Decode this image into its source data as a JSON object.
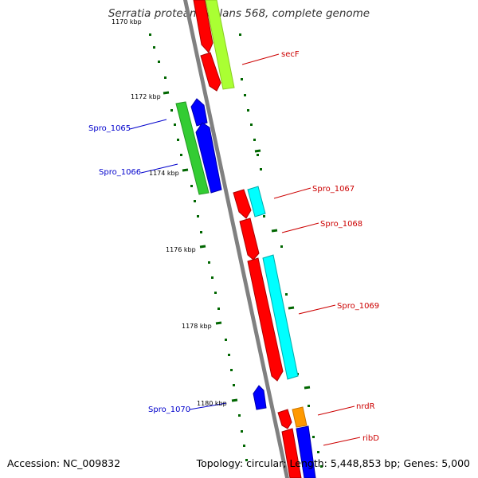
{
  "title": "Serratia proteamaculans 568, complete genome",
  "accession": {
    "label": "Accession:",
    "value": "NC_009832"
  },
  "summary": {
    "topology_label": "Topology:",
    "topology": "circular",
    "length_label": "Length:",
    "length": "5,448,853 bp",
    "genes_label": "Genes:",
    "genes": "5,000"
  },
  "ticks": [
    "1170 kbp",
    "1172 kbp",
    "1174 kbp",
    "1176 kbp",
    "1178 kbp",
    "1180 kbp"
  ],
  "gene_labels": {
    "secF": "secF",
    "spro_1065": "Spro_1065",
    "spro_1066": "Spro_1066",
    "spro_1067": "Spro_1067",
    "spro_1068": "Spro_1068",
    "spro_1069": "Spro_1069",
    "spro_1070": "Spro_1070",
    "nrdR": "nrdR",
    "ribD": "ribD"
  },
  "colors": {
    "forward_cds": "#ff0000",
    "reverse_cds": "#0000ff",
    "forward_blast": "#aaff33",
    "reverse_blast": "#33cc33",
    "cyan_feature": "#00ffff",
    "orange_feature": "#ff9900",
    "backbone": "#808080",
    "tick": "#006600",
    "forward_label": "#cc0000",
    "reverse_label": "#0000cc"
  }
}
